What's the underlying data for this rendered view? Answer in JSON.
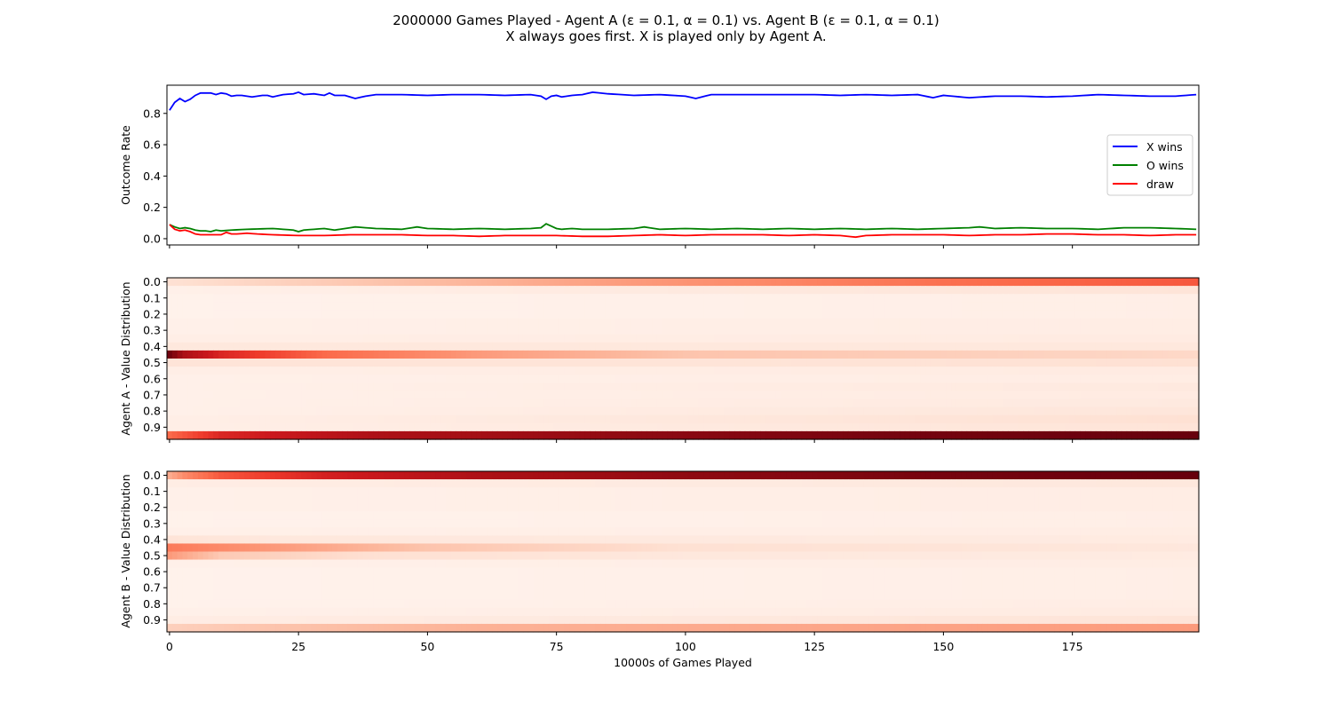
{
  "figure": {
    "title_line1": "2000000 Games Played - Agent A (ε = 0.1, α = 0.1) vs. Agent B (ε = 0.1, α = 0.1)",
    "title_line2": "X always goes first.  X is played only by Agent A."
  },
  "chart_data": [
    {
      "type": "line",
      "ylabel": "Outcome Rate",
      "xlabel": "",
      "xlim": [
        -0.5,
        199.5
      ],
      "ylim": [
        -0.04,
        0.98
      ],
      "yticks": [
        "0.0",
        "0.2",
        "0.4",
        "0.6",
        "0.8"
      ],
      "ytick_values": [
        0.0,
        0.2,
        0.4,
        0.6,
        0.8
      ],
      "xticks": [
        0,
        25,
        50,
        75,
        100,
        125,
        150,
        175
      ],
      "legend": {
        "placement": "right"
      },
      "series": [
        {
          "name": "X wins",
          "color": "#0000ff",
          "anchors_x": [
            0,
            1,
            2,
            3,
            4,
            5,
            6,
            7,
            8,
            9,
            10,
            11,
            12,
            13,
            14,
            15,
            16,
            17,
            18,
            19,
            20,
            22,
            24,
            25,
            26,
            28,
            30,
            31,
            32,
            34,
            35,
            36,
            38,
            40,
            45,
            50,
            55,
            60,
            65,
            70,
            72,
            73,
            74,
            75,
            76,
            78,
            80,
            82,
            85,
            90,
            95,
            100,
            102,
            105,
            110,
            115,
            120,
            125,
            130,
            135,
            140,
            145,
            148,
            150,
            155,
            160,
            165,
            170,
            175,
            180,
            185,
            190,
            195,
            199
          ],
          "anchors_y": [
            0.82,
            0.87,
            0.895,
            0.875,
            0.89,
            0.915,
            0.93,
            0.93,
            0.93,
            0.92,
            0.93,
            0.925,
            0.91,
            0.915,
            0.915,
            0.91,
            0.905,
            0.91,
            0.915,
            0.915,
            0.905,
            0.92,
            0.925,
            0.935,
            0.92,
            0.925,
            0.915,
            0.93,
            0.915,
            0.915,
            0.905,
            0.895,
            0.91,
            0.92,
            0.92,
            0.915,
            0.92,
            0.92,
            0.915,
            0.92,
            0.91,
            0.89,
            0.91,
            0.915,
            0.905,
            0.915,
            0.92,
            0.935,
            0.925,
            0.915,
            0.92,
            0.91,
            0.895,
            0.92,
            0.92,
            0.92,
            0.92,
            0.92,
            0.915,
            0.92,
            0.915,
            0.92,
            0.9,
            0.915,
            0.9,
            0.91,
            0.91,
            0.905,
            0.91,
            0.92,
            0.915,
            0.91,
            0.91,
            0.92
          ]
        },
        {
          "name": "O wins",
          "color": "#008000",
          "anchors_x": [
            0,
            1,
            2,
            3,
            4,
            5,
            6,
            7,
            8,
            9,
            10,
            12,
            15,
            20,
            22,
            24,
            25,
            26,
            28,
            30,
            32,
            35,
            36,
            38,
            40,
            45,
            48,
            50,
            55,
            60,
            65,
            70,
            72,
            73,
            74,
            75,
            76,
            78,
            80,
            85,
            90,
            92,
            95,
            100,
            105,
            110,
            115,
            120,
            125,
            130,
            135,
            140,
            145,
            150,
            155,
            157,
            160,
            165,
            170,
            175,
            180,
            185,
            190,
            195,
            199
          ],
          "anchors_y": [
            0.09,
            0.075,
            0.065,
            0.07,
            0.065,
            0.055,
            0.05,
            0.05,
            0.045,
            0.055,
            0.05,
            0.055,
            0.06,
            0.065,
            0.06,
            0.055,
            0.045,
            0.055,
            0.06,
            0.065,
            0.055,
            0.07,
            0.075,
            0.07,
            0.065,
            0.06,
            0.075,
            0.065,
            0.06,
            0.065,
            0.06,
            0.065,
            0.07,
            0.095,
            0.08,
            0.065,
            0.06,
            0.065,
            0.06,
            0.06,
            0.065,
            0.075,
            0.06,
            0.065,
            0.06,
            0.065,
            0.06,
            0.065,
            0.06,
            0.065,
            0.06,
            0.065,
            0.06,
            0.065,
            0.07,
            0.075,
            0.065,
            0.07,
            0.065,
            0.065,
            0.06,
            0.07,
            0.07,
            0.065,
            0.06
          ]
        },
        {
          "name": "draw",
          "color": "#ff0000",
          "anchors_x": [
            0,
            1,
            2,
            3,
            4,
            5,
            6,
            7,
            8,
            9,
            10,
            11,
            12,
            13,
            15,
            17,
            20,
            25,
            30,
            35,
            40,
            45,
            50,
            55,
            60,
            65,
            70,
            75,
            80,
            85,
            90,
            95,
            100,
            105,
            110,
            115,
            120,
            125,
            130,
            133,
            135,
            140,
            145,
            150,
            155,
            160,
            165,
            170,
            175,
            180,
            185,
            190,
            195,
            199
          ],
          "anchors_y": [
            0.09,
            0.06,
            0.05,
            0.055,
            0.045,
            0.03,
            0.025,
            0.025,
            0.025,
            0.025,
            0.025,
            0.04,
            0.03,
            0.03,
            0.035,
            0.03,
            0.025,
            0.02,
            0.02,
            0.025,
            0.025,
            0.025,
            0.02,
            0.02,
            0.015,
            0.02,
            0.02,
            0.02,
            0.015,
            0.015,
            0.02,
            0.025,
            0.02,
            0.025,
            0.025,
            0.025,
            0.02,
            0.025,
            0.02,
            0.01,
            0.02,
            0.025,
            0.025,
            0.025,
            0.02,
            0.025,
            0.025,
            0.03,
            0.03,
            0.025,
            0.025,
            0.02,
            0.025,
            0.025
          ]
        }
      ]
    },
    {
      "type": "heatmap",
      "ylabel": "Agent A - Value Distribution",
      "colormap": "Reds",
      "n_columns": 200,
      "row_labels": [
        "0.0",
        "0.1",
        "0.2",
        "0.3",
        "0.4",
        "0.5",
        "0.6",
        "0.7",
        "0.8",
        "0.9"
      ],
      "n_bins": 20,
      "bin_profiles": [
        {
          "x": [
            0,
            40,
            90,
            150,
            199
          ],
          "v": [
            0.12,
            0.22,
            0.35,
            0.48,
            0.55
          ]
        },
        {
          "x": [
            0,
            100,
            199
          ],
          "v": [
            0.03,
            0.07,
            0.1
          ]
        },
        {
          "x": [
            0,
            199
          ],
          "v": [
            0.02,
            0.04
          ]
        },
        {
          "x": [
            0,
            199
          ],
          "v": [
            0.02,
            0.04
          ]
        },
        {
          "x": [
            0,
            199
          ],
          "v": [
            0.02,
            0.04
          ]
        },
        {
          "x": [
            0,
            199
          ],
          "v": [
            0.03,
            0.05
          ]
        },
        {
          "x": [
            0,
            199
          ],
          "v": [
            0.03,
            0.05
          ]
        },
        {
          "x": [
            0,
            199
          ],
          "v": [
            0.04,
            0.06
          ]
        },
        {
          "x": [
            0,
            100,
            199
          ],
          "v": [
            0.08,
            0.08,
            0.08
          ]
        },
        {
          "x": [
            0,
            3,
            10,
            30,
            60,
            100,
            199
          ],
          "v": [
            0.98,
            0.85,
            0.7,
            0.5,
            0.35,
            0.22,
            0.15
          ]
        },
        {
          "x": [
            0,
            100,
            199
          ],
          "v": [
            0.1,
            0.1,
            0.12
          ]
        },
        {
          "x": [
            0,
            199
          ],
          "v": [
            0.04,
            0.06
          ]
        },
        {
          "x": [
            0,
            199
          ],
          "v": [
            0.03,
            0.05
          ]
        },
        {
          "x": [
            0,
            199
          ],
          "v": [
            0.03,
            0.07
          ]
        },
        {
          "x": [
            0,
            199
          ],
          "v": [
            0.03,
            0.06
          ]
        },
        {
          "x": [
            0,
            199
          ],
          "v": [
            0.03,
            0.07
          ]
        },
        {
          "x": [
            0,
            199
          ],
          "v": [
            0.03,
            0.09
          ]
        },
        {
          "x": [
            0,
            199
          ],
          "v": [
            0.04,
            0.12
          ]
        },
        {
          "x": [
            0,
            199
          ],
          "v": [
            0.04,
            0.1
          ]
        },
        {
          "x": [
            0,
            10,
            40,
            90,
            140,
            199
          ],
          "v": [
            0.5,
            0.7,
            0.85,
            0.92,
            0.97,
            1.0
          ]
        }
      ]
    },
    {
      "type": "heatmap",
      "ylabel": "Agent B - Value Distribution",
      "xlabel": "10000s of Games Played",
      "xticks": [
        0,
        25,
        50,
        75,
        100,
        125,
        150,
        175
      ],
      "colormap": "Reds",
      "n_columns": 200,
      "row_labels": [
        "0.0",
        "0.1",
        "0.2",
        "0.3",
        "0.4",
        "0.5",
        "0.6",
        "0.7",
        "0.8",
        "0.9"
      ],
      "n_bins": 20,
      "bin_profiles": [
        {
          "x": [
            0,
            3,
            10,
            30,
            60,
            100,
            150,
            199
          ],
          "v": [
            0.3,
            0.4,
            0.55,
            0.72,
            0.85,
            0.92,
            0.97,
            1.0
          ]
        },
        {
          "x": [
            0,
            199
          ],
          "v": [
            0.05,
            0.08
          ]
        },
        {
          "x": [
            0,
            199
          ],
          "v": [
            0.03,
            0.05
          ]
        },
        {
          "x": [
            0,
            199
          ],
          "v": [
            0.03,
            0.05
          ]
        },
        {
          "x": [
            0,
            199
          ],
          "v": [
            0.03,
            0.05
          ]
        },
        {
          "x": [
            0,
            199
          ],
          "v": [
            0.02,
            0.04
          ]
        },
        {
          "x": [
            0,
            199
          ],
          "v": [
            0.02,
            0.04
          ]
        },
        {
          "x": [
            0,
            199
          ],
          "v": [
            0.03,
            0.05
          ]
        },
        {
          "x": [
            0,
            20,
            199
          ],
          "v": [
            0.1,
            0.08,
            0.06
          ]
        },
        {
          "x": [
            0,
            10,
            50,
            100,
            199
          ],
          "v": [
            0.45,
            0.4,
            0.22,
            0.12,
            0.08
          ]
        },
        {
          "x": [
            0,
            10,
            40,
            100,
            199
          ],
          "v": [
            0.35,
            0.2,
            0.12,
            0.08,
            0.06
          ]
        },
        {
          "x": [
            0,
            199
          ],
          "v": [
            0.03,
            0.05
          ]
        },
        {
          "x": [
            0,
            199
          ],
          "v": [
            0.02,
            0.04
          ]
        },
        {
          "x": [
            0,
            199
          ],
          "v": [
            0.02,
            0.04
          ]
        },
        {
          "x": [
            0,
            199
          ],
          "v": [
            0.02,
            0.04
          ]
        },
        {
          "x": [
            0,
            199
          ],
          "v": [
            0.02,
            0.04
          ]
        },
        {
          "x": [
            0,
            199
          ],
          "v": [
            0.02,
            0.05
          ]
        },
        {
          "x": [
            0,
            199
          ],
          "v": [
            0.03,
            0.06
          ]
        },
        {
          "x": [
            0,
            199
          ],
          "v": [
            0.05,
            0.1
          ]
        },
        {
          "x": [
            0,
            20,
            60,
            199
          ],
          "v": [
            0.18,
            0.22,
            0.28,
            0.35
          ]
        }
      ]
    }
  ]
}
